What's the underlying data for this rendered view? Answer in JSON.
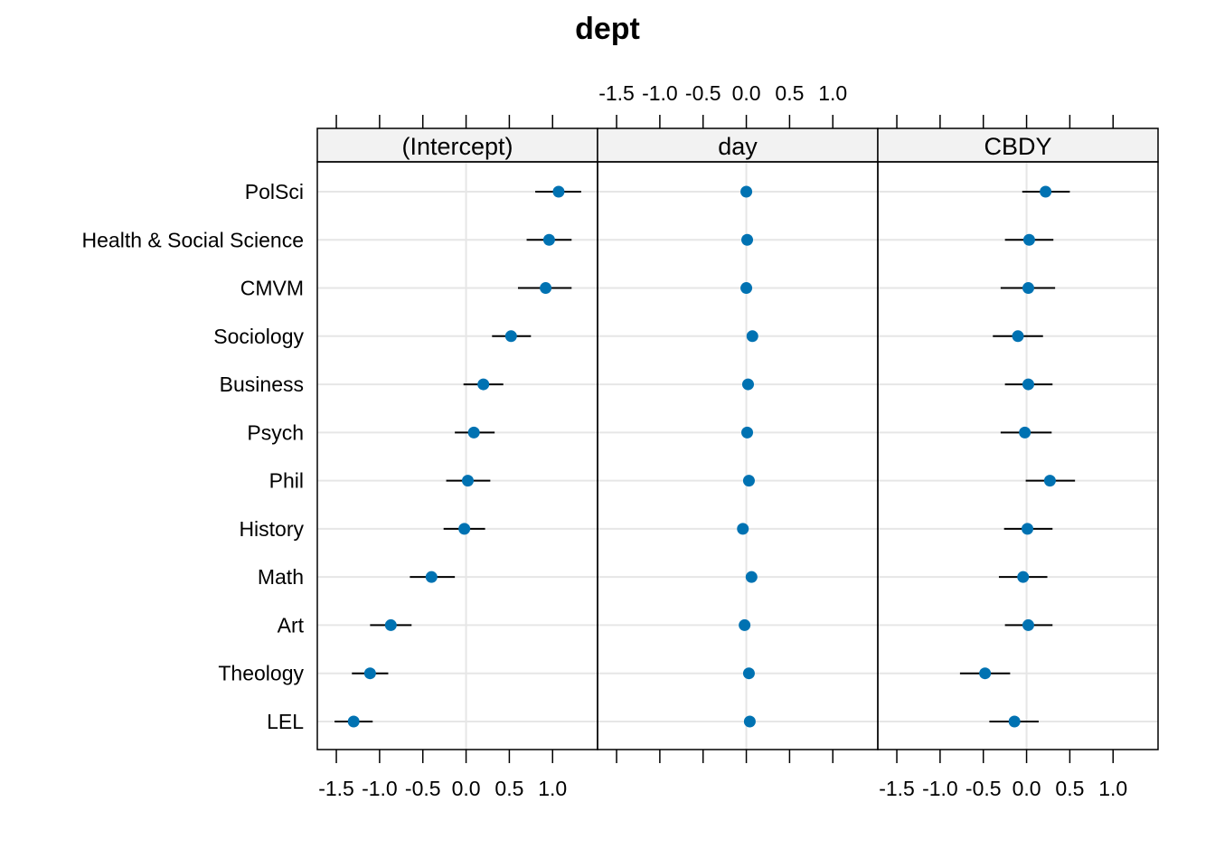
{
  "chart_data": {
    "type": "scatter",
    "title": "dept",
    "panels": [
      "(Intercept)",
      "day",
      "CBDY"
    ],
    "tick_labels": [
      "-1.5",
      "-1.0",
      "-0.5",
      "0.0",
      "0.5",
      "1.0"
    ],
    "xlim": [
      -1.72,
      1.52
    ],
    "grid": true,
    "point_color": "#0072B2",
    "categories": [
      "PolSci",
      "Health & Social Science",
      "CMVM",
      "Sociology",
      "Business",
      "Psych",
      "Phil",
      "History",
      "Math",
      "Art",
      "Theology",
      "LEL"
    ],
    "series": [
      {
        "estimate": [
          1.07,
          0.96,
          0.92,
          0.52,
          0.2,
          0.09,
          0.02,
          -0.02,
          -0.4,
          -0.87,
          -1.11,
          -1.3
        ],
        "lower": [
          0.8,
          0.7,
          0.6,
          0.3,
          -0.03,
          -0.13,
          -0.23,
          -0.26,
          -0.65,
          -1.11,
          -1.32,
          -1.52
        ],
        "upper": [
          1.33,
          1.22,
          1.22,
          0.75,
          0.43,
          0.33,
          0.28,
          0.22,
          -0.13,
          -0.63,
          -0.9,
          -1.08
        ]
      },
      {
        "estimate": [
          0.0,
          0.01,
          0.0,
          0.07,
          0.02,
          0.01,
          0.03,
          -0.04,
          0.06,
          -0.02,
          0.03,
          0.04
        ],
        "lower": [
          0.0,
          0.01,
          0.0,
          0.07,
          0.02,
          0.01,
          0.03,
          -0.04,
          0.06,
          -0.02,
          0.03,
          0.04
        ],
        "upper": [
          0.0,
          0.01,
          0.0,
          0.07,
          0.02,
          0.01,
          0.03,
          -0.04,
          0.06,
          -0.02,
          0.03,
          0.04
        ]
      },
      {
        "estimate": [
          0.22,
          0.03,
          0.02,
          -0.1,
          0.02,
          -0.02,
          0.27,
          0.01,
          -0.04,
          0.02,
          -0.48,
          -0.14
        ],
        "lower": [
          -0.05,
          -0.25,
          -0.3,
          -0.39,
          -0.25,
          -0.3,
          -0.01,
          -0.26,
          -0.32,
          -0.25,
          -0.77,
          -0.43
        ],
        "upper": [
          0.5,
          0.31,
          0.33,
          0.19,
          0.3,
          0.29,
          0.56,
          0.3,
          0.24,
          0.3,
          -0.19,
          0.14
        ]
      }
    ]
  }
}
